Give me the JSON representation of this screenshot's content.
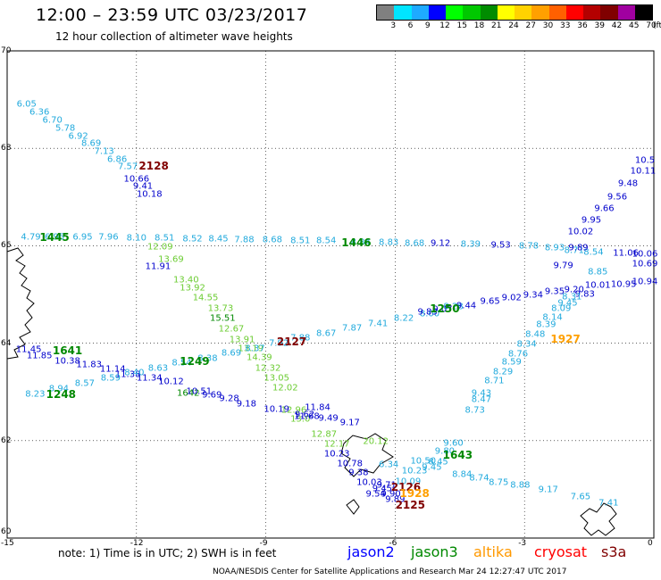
{
  "header": {
    "title": "12:00 – 23:59 UTC 03/23/2017",
    "subtitle": "12 hour collection of altimeter wave heights"
  },
  "legend": {
    "unit": "(ft)",
    "bins": [
      {
        "label": "3",
        "color": "#808080"
      },
      {
        "label": "6",
        "color": "#00e5ff"
      },
      {
        "label": "9",
        "color": "#1eaaff"
      },
      {
        "label": "12",
        "color": "#0000ff"
      },
      {
        "label": "15",
        "color": "#00ff00"
      },
      {
        "label": "18",
        "color": "#00c800"
      },
      {
        "label": "21",
        "color": "#008c00"
      },
      {
        "label": "24",
        "color": "#ffff00"
      },
      {
        "label": "27",
        "color": "#ffd200"
      },
      {
        "label": "30",
        "color": "#ffa000"
      },
      {
        "label": "33",
        "color": "#ff6000"
      },
      {
        "label": "36",
        "color": "#ff0000"
      },
      {
        "label": "39",
        "color": "#b40000"
      },
      {
        "label": "42",
        "color": "#800000"
      },
      {
        "label": "45",
        "color": "#a000a0"
      },
      {
        "label": "70",
        "color": "#000000"
      }
    ]
  },
  "map": {
    "lat_labels": [
      "70",
      "68",
      "66",
      "64",
      "62",
      "60"
    ],
    "lon_labels": [
      "-15",
      "-12",
      "-9",
      "-6",
      "-3",
      "0"
    ],
    "lat_range": [
      60,
      70
    ],
    "lon_range": [
      -15,
      0
    ],
    "grid": true,
    "observations": [
      {
        "id": "cyan1",
        "color": "#22aadd",
        "points": [
          [
            -14.55,
            68.9,
            "6.05"
          ],
          [
            -14.25,
            68.73,
            "6.36"
          ],
          [
            -13.95,
            68.57,
            "6.70"
          ],
          [
            -13.65,
            68.41,
            "5.78"
          ],
          [
            -13.35,
            68.25,
            "6.92"
          ],
          [
            -13.05,
            68.09,
            "8.69"
          ],
          [
            -12.75,
            67.93,
            "7.13"
          ],
          [
            -12.45,
            67.77,
            "6.86"
          ],
          [
            -12.2,
            67.61,
            "7.57"
          ]
        ]
      },
      {
        "id": "blue1",
        "color": "#0000cc",
        "points": [
          [
            -12.0,
            67.37,
            "10.66"
          ],
          [
            -11.85,
            67.22,
            "9.41"
          ],
          [
            -11.7,
            67.06,
            "10.18"
          ]
        ]
      },
      {
        "id": "cyan-row",
        "color": "#22aadd",
        "points": [
          [
            -14.45,
            66.18,
            "4.79"
          ],
          [
            -13.9,
            66.18,
            "6.95"
          ],
          [
            -13.25,
            66.18,
            "6.95"
          ],
          [
            -12.65,
            66.17,
            "7.96"
          ],
          [
            -12.0,
            66.16,
            "8.10"
          ],
          [
            -11.35,
            66.15,
            "8.51"
          ],
          [
            -10.7,
            66.14,
            "8.52"
          ],
          [
            -10.1,
            66.13,
            "8.45"
          ],
          [
            -9.5,
            66.12,
            "7.88"
          ],
          [
            -8.85,
            66.11,
            "8.68"
          ],
          [
            -8.2,
            66.1,
            "8.51"
          ],
          [
            -7.6,
            66.09,
            "8.54"
          ],
          [
            -6.8,
            66.07,
            "8.84"
          ],
          [
            -6.15,
            66.06,
            "8.83"
          ],
          [
            -5.55,
            66.05,
            "8.68"
          ]
        ]
      },
      {
        "id": "blue-row",
        "color": "#0000cc",
        "points": [
          [
            -4.95,
            66.04,
            "9.12"
          ],
          [
            -3.55,
            66.0,
            "9.53"
          ]
        ]
      },
      {
        "id": "cyan-row2",
        "color": "#22aadd",
        "points": [
          [
            -4.25,
            66.02,
            "8.39"
          ],
          [
            -2.9,
            65.98,
            "8.78"
          ],
          [
            -2.3,
            65.96,
            "8.93"
          ],
          [
            -1.85,
            65.9,
            "8.71"
          ],
          [
            -1.4,
            65.86,
            "8.54"
          ]
        ]
      },
      {
        "id": "blue-row2",
        "color": "#0000cc",
        "points": [
          [
            -1.75,
            65.96,
            "9.89"
          ],
          [
            -0.65,
            65.84,
            "11.06"
          ],
          [
            0.0,
            65.82,
            "10.06"
          ]
        ]
      },
      {
        "id": "green-down",
        "color": "#6ccc33",
        "points": [
          [
            -11.45,
            65.97,
            "12.09"
          ],
          [
            -11.2,
            65.72,
            "13.69"
          ],
          [
            -10.85,
            65.3,
            "13.40"
          ],
          [
            -10.7,
            65.12,
            "13.92"
          ],
          [
            -10.4,
            64.93,
            "14.55"
          ],
          [
            -10.05,
            64.7,
            "13.73"
          ],
          [
            -9.8,
            64.28,
            "12.67"
          ],
          [
            -9.55,
            64.06,
            "13.91"
          ],
          [
            -9.35,
            63.88,
            "13.19"
          ],
          [
            -9.15,
            63.7,
            "14.39"
          ],
          [
            -8.95,
            63.48,
            "12.32"
          ],
          [
            -8.75,
            63.28,
            "13.05"
          ],
          [
            -8.55,
            63.08,
            "12.02"
          ],
          [
            -8.35,
            62.62,
            "12.96"
          ],
          [
            -8.2,
            62.44,
            "13.0"
          ],
          [
            -7.65,
            62.12,
            "12.87"
          ],
          [
            -7.35,
            61.92,
            "12.17"
          ],
          [
            -6.45,
            61.98,
            "20.12"
          ]
        ]
      },
      {
        "id": "green-dark",
        "color": "#008800",
        "points": [
          [
            -10.0,
            64.51,
            "15.51"
          ],
          [
            -10.8,
            62.96,
            "1642"
          ]
        ]
      },
      {
        "id": "blue-mid",
        "color": "#0000cc",
        "points": [
          [
            -11.5,
            65.56,
            "11.91"
          ],
          [
            -7.8,
            62.68,
            "11.84"
          ],
          [
            -8.05,
            62.49,
            "11.68"
          ],
          [
            -7.35,
            61.72,
            "10.23"
          ],
          [
            -7.05,
            61.52,
            "10.78"
          ],
          [
            -6.85,
            61.33,
            "9.38"
          ],
          [
            -6.6,
            61.13,
            "10.03"
          ],
          [
            -6.2,
            61.08,
            "9.71"
          ],
          [
            -6.3,
            61.0,
            "9.45"
          ],
          [
            -6.1,
            60.9,
            "9.90"
          ]
        ]
      },
      {
        "id": "blue-left",
        "color": "#0000cc",
        "points": [
          [
            -14.5,
            63.87,
            "11.45"
          ],
          [
            -14.25,
            63.74,
            "11.85"
          ],
          [
            -13.6,
            63.63,
            "10.38"
          ],
          [
            -13.1,
            63.55,
            "11.83"
          ],
          [
            -12.55,
            63.47,
            "11.14"
          ],
          [
            -12.2,
            63.36,
            "11.38"
          ],
          [
            -11.7,
            63.28,
            "11.34"
          ],
          [
            -11.2,
            63.21,
            "10.12"
          ],
          [
            -10.55,
            63.0,
            "10.51"
          ],
          [
            -10.25,
            62.93,
            "9.69"
          ],
          [
            -9.85,
            62.85,
            "9.28"
          ],
          [
            -9.45,
            62.75,
            "9.18"
          ],
          [
            -8.75,
            62.63,
            "10.19"
          ],
          [
            -8.1,
            62.52,
            "9.62"
          ],
          [
            -7.55,
            62.45,
            "9.49"
          ],
          [
            -7.05,
            62.37,
            "9.17"
          ]
        ]
      },
      {
        "id": "cyan-left",
        "color": "#22aadd",
        "points": [
          [
            -14.35,
            62.95,
            "8.23"
          ],
          [
            -13.8,
            63.06,
            "8.94"
          ],
          [
            -13.2,
            63.16,
            "8.57"
          ],
          [
            -12.6,
            63.27,
            "8.59"
          ],
          [
            -12.05,
            63.38,
            "8.40"
          ],
          [
            -11.5,
            63.48,
            "8.63"
          ],
          [
            -10.95,
            63.59,
            "8.54"
          ],
          [
            -10.35,
            63.69,
            "8.38"
          ],
          [
            -9.8,
            63.79,
            "8.69"
          ],
          [
            -9.25,
            63.89,
            "8.37"
          ],
          [
            -8.7,
            64.0,
            "7.92"
          ],
          [
            -8.2,
            64.1,
            "7.88"
          ],
          [
            -7.6,
            64.2,
            "8.67"
          ],
          [
            -7.0,
            64.3,
            "7.87"
          ],
          [
            -6.4,
            64.4,
            "7.41"
          ],
          [
            -5.8,
            64.5,
            "8.22"
          ],
          [
            -5.2,
            64.6,
            "8.00"
          ],
          [
            -4.65,
            64.75,
            "8.28"
          ]
        ]
      },
      {
        "id": "blue-rise",
        "color": "#0000cc",
        "points": [
          [
            -5.25,
            64.63,
            "9.83"
          ],
          [
            -4.9,
            64.69,
            "9.07"
          ],
          [
            -4.35,
            64.77,
            "9.44"
          ],
          [
            -3.8,
            64.85,
            "9.65"
          ],
          [
            -3.3,
            64.92,
            "9.02"
          ],
          [
            -2.8,
            64.98,
            "9.34"
          ],
          [
            -2.3,
            65.05,
            "9.35"
          ],
          [
            -1.85,
            65.1,
            "9.20"
          ],
          [
            -1.3,
            65.18,
            "10.01"
          ],
          [
            -0.7,
            65.2,
            "10.95"
          ],
          [
            0.0,
            65.25,
            "10.94"
          ]
        ]
      },
      {
        "id": "blue-ne",
        "color": "#0000cc",
        "points": [
          [
            0.0,
            67.75,
            "10.5"
          ],
          [
            -0.25,
            67.52,
            "10.11"
          ],
          [
            -0.6,
            67.27,
            "9.48"
          ],
          [
            -0.85,
            67.0,
            "9.56"
          ],
          [
            -1.15,
            66.75,
            "9.66"
          ],
          [
            -1.45,
            66.52,
            "9.95"
          ],
          [
            -1.7,
            66.28,
            "10.02"
          ],
          [
            -2.1,
            65.58,
            "9.79"
          ],
          [
            0.0,
            65.62,
            "10.69"
          ],
          [
            -1.6,
            65.0,
            "9.83"
          ]
        ]
      },
      {
        "id": "cyan-sw",
        "color": "#22aadd",
        "points": [
          [
            -1.3,
            65.45,
            "8.85"
          ],
          [
            -1.9,
            64.95,
            "8.31"
          ],
          [
            -2.0,
            64.82,
            "9.45"
          ],
          [
            -2.15,
            64.7,
            "8.09"
          ],
          [
            -2.35,
            64.53,
            "8.14"
          ],
          [
            -2.5,
            64.38,
            "8.39"
          ],
          [
            -2.75,
            64.18,
            "8.48"
          ],
          [
            -2.95,
            63.98,
            "8.34"
          ],
          [
            -3.15,
            63.78,
            "8.76"
          ],
          [
            -3.3,
            63.6,
            "8.59"
          ],
          [
            -3.5,
            63.4,
            "8.29"
          ],
          [
            -3.7,
            63.22,
            "8.71"
          ],
          [
            -4.0,
            62.84,
            "8.47"
          ],
          [
            -4.15,
            62.62,
            "8.73"
          ],
          [
            -4.0,
            62.97,
            "9.43"
          ],
          [
            -4.65,
            61.95,
            "9.60"
          ],
          [
            -4.85,
            61.78,
            "9.80"
          ],
          [
            -5.35,
            61.58,
            "10.50"
          ],
          [
            -5.55,
            61.37,
            "10.23"
          ],
          [
            -5.7,
            61.16,
            "10.09"
          ]
        ]
      },
      {
        "id": "cyan-se",
        "color": "#22aadd",
        "points": [
          [
            -5.0,
            61.55,
            "8.45"
          ],
          [
            -4.45,
            61.3,
            "8.84"
          ],
          [
            -4.05,
            61.22,
            "8.74"
          ],
          [
            -3.6,
            61.14,
            "8.75"
          ],
          [
            -3.1,
            61.08,
            "8.88"
          ],
          [
            -2.45,
            60.98,
            "9.17"
          ],
          [
            -1.7,
            60.84,
            "7.65"
          ],
          [
            -1.05,
            60.72,
            "7.41"
          ]
        ]
      },
      {
        "id": "gray-misc",
        "color": "#22aadd",
        "points": [
          [
            -6.15,
            61.5,
            "6.34"
          ],
          [
            -5.15,
            61.45,
            "9.45"
          ]
        ]
      },
      {
        "id": "blue-bot",
        "color": "#0000cc",
        "points": [
          [
            -6.45,
            60.9,
            "9.54"
          ],
          [
            -6.0,
            60.78,
            "9.89"
          ]
        ]
      }
    ],
    "times": [
      {
        "t": "2128",
        "color": "#800000",
        "lon": -11.6,
        "lat": 67.64
      },
      {
        "t": "1445",
        "color": "#008800",
        "lon": -13.9,
        "lat": 66.18
      },
      {
        "t": "1446",
        "color": "#008800",
        "lon": -6.9,
        "lat": 66.07
      },
      {
        "t": "1641",
        "color": "#008800",
        "lon": -13.6,
        "lat": 63.85
      },
      {
        "t": "1249",
        "color": "#008800",
        "lon": -10.65,
        "lat": 63.62
      },
      {
        "t": "1248",
        "color": "#008800",
        "lon": -13.75,
        "lat": 62.95
      },
      {
        "t": "1250",
        "color": "#008800",
        "lon": -4.85,
        "lat": 64.7
      },
      {
        "t": "2127",
        "color": "#800000",
        "lon": -8.4,
        "lat": 64.03
      },
      {
        "t": "1927",
        "color": "#ffa000",
        "lon": -2.05,
        "lat": 64.08
      },
      {
        "t": "1643",
        "color": "#008800",
        "lon": -4.55,
        "lat": 61.7
      },
      {
        "t": "2126",
        "color": "#800000",
        "lon": -5.75,
        "lat": 61.05
      },
      {
        "t": "1928",
        "color": "#ffa000",
        "lon": -5.55,
        "lat": 60.92
      },
      {
        "t": "2125",
        "color": "#800000",
        "lon": -5.65,
        "lat": 60.68
      }
    ]
  },
  "footer": {
    "note": "note:  1) Time is in UTC; 2) SWH is in feet",
    "satellites": [
      {
        "name": "jason2",
        "color": "#0000ff"
      },
      {
        "name": "jason3",
        "color": "#008800"
      },
      {
        "name": "altika",
        "color": "#ff9900"
      },
      {
        "name": "cryosat",
        "color": "#ff0000"
      },
      {
        "name": "s3a",
        "color": "#800000"
      }
    ],
    "credit": "NOAA/NESDIS Center for Satellite Applications and Research     Mar 24 12:27:47 UTC 2017"
  }
}
